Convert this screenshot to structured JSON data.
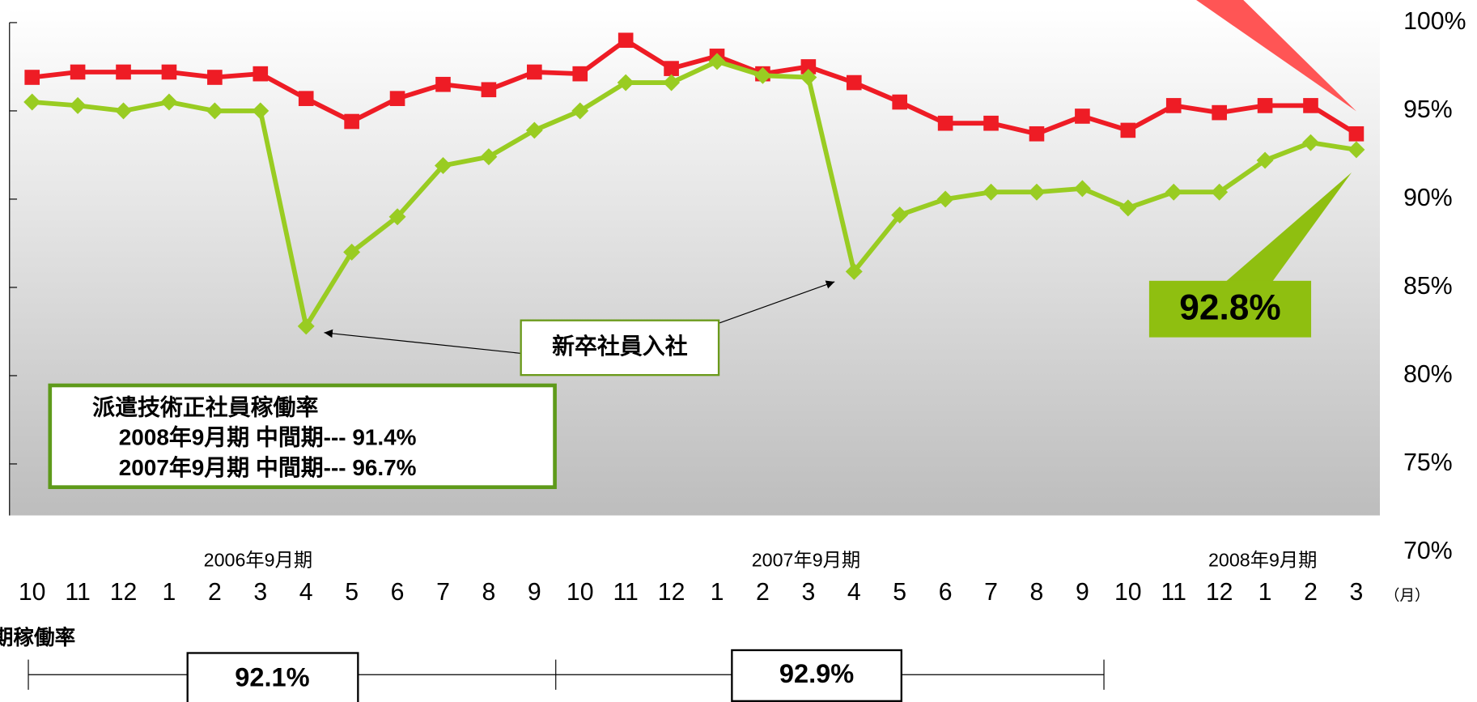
{
  "chart_data": {
    "type": "line",
    "categories": [
      "10",
      "11",
      "12",
      "1",
      "2",
      "3",
      "4",
      "5",
      "6",
      "7",
      "8",
      "9",
      "10",
      "11",
      "12",
      "1",
      "2",
      "3",
      "4",
      "5",
      "6",
      "7",
      "8",
      "9",
      "10",
      "11",
      "12",
      "1",
      "2",
      "3"
    ],
    "x_unit": "（月）",
    "period_labels": [
      {
        "index": 4,
        "label": "2006年9月期"
      },
      {
        "index": 16,
        "label": "2007年9月期"
      },
      {
        "index": 26,
        "label": "2008年9月期"
      }
    ],
    "series": [
      {
        "color": "#ee1c25",
        "values": [
          96.9,
          97.2,
          97.2,
          97.2,
          96.9,
          97.1,
          95.7,
          94.4,
          95.7,
          96.5,
          96.2,
          97.2,
          97.1,
          99.0,
          97.4,
          98.1,
          97.1,
          97.5,
          96.6,
          95.5,
          94.3,
          94.3,
          93.7,
          94.7,
          93.9,
          95.3,
          94.9,
          95.3,
          95.3,
          93.7
        ]
      },
      {
        "color": "#99cc22",
        "values": [
          95.5,
          95.3,
          95.0,
          95.5,
          95.0,
          95.0,
          82.8,
          87.0,
          89.0,
          91.9,
          92.4,
          93.9,
          95.0,
          96.6,
          96.6,
          97.8,
          97.0,
          96.9,
          85.9,
          89.1,
          90.0,
          90.4,
          90.4,
          90.6,
          89.5,
          90.4,
          90.4,
          92.2,
          93.2,
          92.8
        ],
        "value_labels_last": "92.8%"
      }
    ],
    "ylim": [
      70,
      100
    ],
    "yticks": [
      {
        "value": 100,
        "label": "100%"
      },
      {
        "value": 95,
        "label": "95%"
      },
      {
        "value": 90,
        "label": "90%"
      },
      {
        "value": 85,
        "label": "85%"
      },
      {
        "value": 80,
        "label": "80%"
      },
      {
        "value": 75,
        "label": "75%"
      },
      {
        "value": 70,
        "label": "70%"
      }
    ],
    "annotation": "新卒社員入社",
    "legend_box": {
      "title": "派遣技術正社員稼働率",
      "lines": [
        "2008年9月期 中間期--- 91.4%",
        "2007年9月期 中間期--- 96.7%"
      ]
    },
    "bottom_title": "期稼働率",
    "half_year_rates": [
      "92.1%",
      "92.9%"
    ]
  }
}
